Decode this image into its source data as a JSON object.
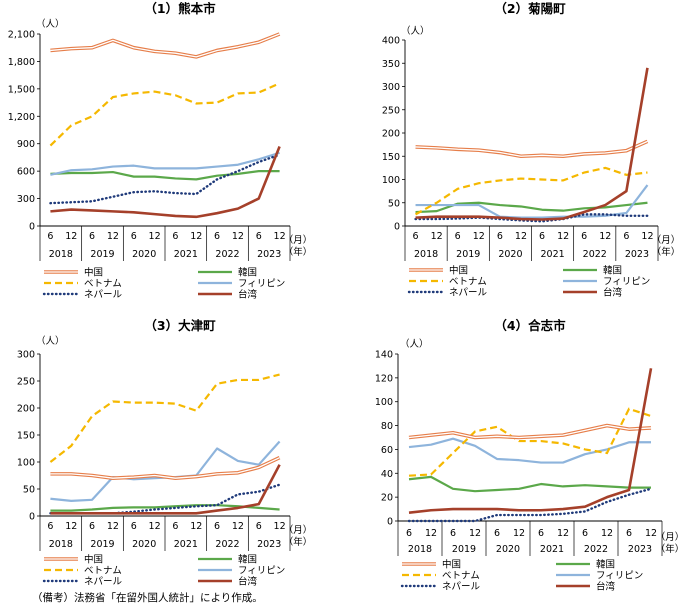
{
  "source_note": "（備考）法務省「在留外国人統計」により作成。",
  "legend": [
    {
      "key": "china",
      "label": "中国"
    },
    {
      "key": "korea",
      "label": "韓国"
    },
    {
      "key": "vietnam",
      "label": "ベトナム"
    },
    {
      "key": "philippines",
      "label": "フィリピン"
    },
    {
      "key": "nepal",
      "label": "ネパール"
    },
    {
      "key": "taiwan",
      "label": "台湾"
    }
  ],
  "series_styles": {
    "china": {
      "color": "#e67e4a",
      "style": "double"
    },
    "korea": {
      "color": "#5ba84a",
      "style": "solid"
    },
    "vietnam": {
      "color": "#f5b800",
      "style": "dashed"
    },
    "philippines": {
      "color": "#8eb4dc",
      "style": "solid"
    },
    "nepal": {
      "color": "#1f3a7a",
      "style": "dotted"
    },
    "taiwan": {
      "color": "#a5402a",
      "style": "solid"
    }
  },
  "chart_data": [
    {
      "type": "line",
      "title": "（1）熊本市",
      "y_unit_label": "（人）",
      "x_unit_label": [
        "（月）",
        "（年）"
      ],
      "x_month_labels": [
        "6",
        "12",
        "6",
        "12",
        "6",
        "12",
        "6",
        "12",
        "6",
        "12",
        "6",
        "12"
      ],
      "x_year_labels": [
        "2018",
        "2019",
        "2020",
        "2021",
        "2022",
        "2023"
      ],
      "ylim": [
        0,
        2100
      ],
      "yticks": [
        0,
        300,
        600,
        900,
        1200,
        1500,
        1800,
        2100
      ],
      "ytick_labels": [
        "0",
        "300",
        "600",
        "900",
        "1,200",
        "1,500",
        "1,800",
        "2,100"
      ],
      "series": [
        {
          "key": "china",
          "name": "中国",
          "values": [
            1920,
            1940,
            1950,
            2030,
            1950,
            1910,
            1890,
            1850,
            1920,
            1960,
            2010,
            2100
          ]
        },
        {
          "key": "korea",
          "name": "韓国",
          "values": [
            570,
            580,
            580,
            590,
            540,
            540,
            520,
            510,
            550,
            570,
            600,
            600
          ]
        },
        {
          "key": "vietnam",
          "name": "ベトナム",
          "values": [
            880,
            1100,
            1200,
            1410,
            1450,
            1470,
            1430,
            1340,
            1350,
            1450,
            1460,
            1560
          ]
        },
        {
          "key": "philippines",
          "name": "フィリピン",
          "values": [
            560,
            610,
            620,
            650,
            660,
            630,
            630,
            630,
            650,
            670,
            730,
            800
          ]
        },
        {
          "key": "nepal",
          "name": "ネパール",
          "values": [
            250,
            260,
            270,
            320,
            370,
            380,
            360,
            350,
            510,
            600,
            700,
            780
          ]
        },
        {
          "key": "taiwan",
          "name": "台湾",
          "values": [
            160,
            180,
            170,
            160,
            150,
            130,
            110,
            100,
            140,
            190,
            300,
            870
          ]
        }
      ]
    },
    {
      "type": "line",
      "title": "（2）菊陽町",
      "y_unit_label": "（人）",
      "x_unit_label": [
        "（月）",
        "（年）"
      ],
      "x_month_labels": [
        "6",
        "12",
        "6",
        "12",
        "6",
        "12",
        "6",
        "12",
        "6",
        "12",
        "6",
        "12"
      ],
      "x_year_labels": [
        "2018",
        "2019",
        "2020",
        "2021",
        "2022",
        "2023"
      ],
      "ylim": [
        0,
        400
      ],
      "yticks": [
        0,
        50,
        100,
        150,
        200,
        250,
        300,
        350,
        400
      ],
      "ytick_labels": [
        "0",
        "50",
        "100",
        "150",
        "200",
        "250",
        "300",
        "350",
        "400"
      ],
      "series": [
        {
          "key": "china",
          "name": "中国",
          "values": [
            170,
            168,
            165,
            163,
            158,
            150,
            152,
            150,
            155,
            157,
            162,
            182
          ]
        },
        {
          "key": "korea",
          "name": "韓国",
          "values": [
            30,
            32,
            48,
            50,
            45,
            42,
            35,
            33,
            38,
            40,
            45,
            50
          ]
        },
        {
          "key": "vietnam",
          "name": "ベトナム",
          "values": [
            25,
            50,
            80,
            92,
            98,
            102,
            100,
            98,
            115,
            125,
            110,
            115
          ]
        },
        {
          "key": "philippines",
          "name": "フィリピン",
          "values": [
            45,
            45,
            45,
            45,
            20,
            18,
            18,
            20,
            20,
            22,
            28,
            88
          ]
        },
        {
          "key": "nepal",
          "name": "ネパール",
          "values": [
            15,
            15,
            16,
            18,
            15,
            12,
            10,
            15,
            25,
            25,
            22,
            22
          ]
        },
        {
          "key": "taiwan",
          "name": "台湾",
          "values": [
            18,
            20,
            20,
            20,
            18,
            15,
            14,
            16,
            30,
            45,
            75,
            340
          ]
        }
      ]
    },
    {
      "type": "line",
      "title": "（3）大津町",
      "y_unit_label": "（人）",
      "x_unit_label": [
        "（月）",
        "（年）"
      ],
      "x_month_labels": [
        "6",
        "12",
        "6",
        "12",
        "6",
        "12",
        "6",
        "12",
        "6",
        "12",
        "6",
        "12"
      ],
      "x_year_labels": [
        "2018",
        "2019",
        "2020",
        "2021",
        "2022",
        "2023"
      ],
      "ylim": [
        0,
        300
      ],
      "yticks": [
        0,
        50,
        100,
        150,
        200,
        250,
        300
      ],
      "ytick_labels": [
        "0",
        "50",
        "100",
        "150",
        "200",
        "250",
        "300"
      ],
      "series": [
        {
          "key": "china",
          "name": "中国",
          "values": [
            78,
            78,
            75,
            70,
            72,
            75,
            70,
            73,
            78,
            80,
            90,
            108
          ]
        },
        {
          "key": "korea",
          "name": "韓国",
          "values": [
            10,
            10,
            12,
            15,
            16,
            16,
            18,
            20,
            20,
            18,
            15,
            12
          ]
        },
        {
          "key": "vietnam",
          "name": "ベトナム",
          "values": [
            100,
            130,
            185,
            212,
            210,
            210,
            208,
            195,
            245,
            252,
            252,
            262
          ]
        },
        {
          "key": "philippines",
          "name": "フィリピン",
          "values": [
            32,
            28,
            30,
            72,
            68,
            70,
            72,
            75,
            125,
            102,
            95,
            138
          ]
        },
        {
          "key": "nepal",
          "name": "ネパール",
          "values": [
            5,
            5,
            5,
            5,
            8,
            12,
            15,
            18,
            20,
            40,
            45,
            58
          ]
        },
        {
          "key": "taiwan",
          "name": "台湾",
          "values": [
            5,
            5,
            5,
            5,
            5,
            5,
            5,
            5,
            10,
            15,
            22,
            95
          ]
        }
      ]
    },
    {
      "type": "line",
      "title": "（4）合志市",
      "y_unit_label": "（人）",
      "x_unit_label": [
        "（月）",
        "（年）"
      ],
      "x_month_labels": [
        "6",
        "12",
        "6",
        "12",
        "6",
        "12",
        "6",
        "12",
        "6",
        "12",
        "6",
        "12"
      ],
      "x_year_labels": [
        "2018",
        "2019",
        "2020",
        "2021",
        "2022",
        "2023"
      ],
      "ylim": [
        0,
        140
      ],
      "yticks": [
        0,
        20,
        40,
        60,
        80,
        100,
        120,
        140
      ],
      "ytick_labels": [
        "0",
        "20",
        "40",
        "60",
        "80",
        "100",
        "120",
        "140"
      ],
      "series": [
        {
          "key": "china",
          "name": "中国",
          "values": [
            70,
            72,
            74,
            70,
            71,
            70,
            71,
            72,
            76,
            80,
            77,
            78
          ]
        },
        {
          "key": "korea",
          "name": "韓国",
          "values": [
            35,
            37,
            27,
            25,
            26,
            27,
            31,
            29,
            30,
            29,
            28,
            28
          ]
        },
        {
          "key": "vietnam",
          "name": "ベトナム",
          "values": [
            38,
            39,
            57,
            75,
            79,
            67,
            67,
            65,
            60,
            57,
            94,
            88
          ]
        },
        {
          "key": "philippines",
          "name": "フィリピン",
          "values": [
            62,
            64,
            69,
            63,
            52,
            51,
            49,
            49,
            56,
            60,
            66,
            66
          ]
        },
        {
          "key": "nepal",
          "name": "ネパール",
          "values": [
            0,
            0,
            0,
            0,
            5,
            5,
            5,
            6,
            8,
            16,
            22,
            27
          ]
        },
        {
          "key": "taiwan",
          "name": "台湾",
          "values": [
            7,
            9,
            10,
            10,
            10,
            9,
            9,
            10,
            12,
            20,
            26,
            128
          ]
        }
      ]
    }
  ]
}
